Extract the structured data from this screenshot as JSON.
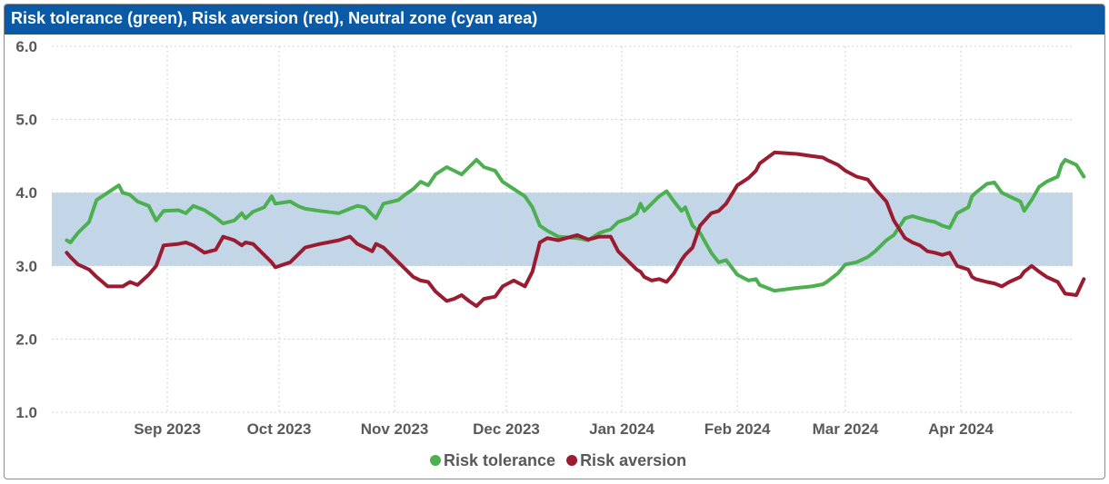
{
  "title": "Risk tolerance (green), Risk aversion (red), Neutral zone (cyan area)",
  "colors": {
    "title_bar": "#0b5aa5",
    "tolerance": "#4caf50",
    "aversion": "#9b1b30",
    "neutral_zone": "#c3d6e8",
    "grid": "#d0d0d0",
    "tick_text": "#595959"
  },
  "chart_data": {
    "type": "line",
    "title": "Risk tolerance (green), Risk aversion (red), Neutral zone (cyan area)",
    "ylim": [
      1.0,
      6.0
    ],
    "y_ticks": [
      "1.0",
      "2.0",
      "3.0",
      "4.0",
      "5.0",
      "6.0"
    ],
    "x_range": [
      "2023-08-01",
      "2024-05-01"
    ],
    "x_ticks": [
      {
        "date": "2023-09-01",
        "label": "Sep 2023"
      },
      {
        "date": "2023-10-01",
        "label": "Oct 2023"
      },
      {
        "date": "2023-11-01",
        "label": "Nov 2023"
      },
      {
        "date": "2023-12-01",
        "label": "Dec 2023"
      },
      {
        "date": "2024-01-01",
        "label": "Jan 2024"
      },
      {
        "date": "2024-02-01",
        "label": "Feb 2024"
      },
      {
        "date": "2024-03-01",
        "label": "Mar 2024"
      },
      {
        "date": "2024-04-01",
        "label": "Apr 2024"
      }
    ],
    "neutral_zone": [
      3.0,
      4.0
    ],
    "grid": true,
    "legend_position": "bottom-center",
    "series": [
      {
        "name": "Risk tolerance",
        "color": "#4caf50",
        "points": [
          [
            "2023-08-05",
            3.35
          ],
          [
            "2023-08-06",
            3.32
          ],
          [
            "2023-08-08",
            3.45
          ],
          [
            "2023-08-11",
            3.6
          ],
          [
            "2023-08-13",
            3.9
          ],
          [
            "2023-08-16",
            4.0
          ],
          [
            "2023-08-19",
            4.1
          ],
          [
            "2023-08-20",
            4.0
          ],
          [
            "2023-08-22",
            3.97
          ],
          [
            "2023-08-24",
            3.88
          ],
          [
            "2023-08-27",
            3.82
          ],
          [
            "2023-08-29",
            3.62
          ],
          [
            "2023-08-31",
            3.75
          ],
          [
            "2023-09-04",
            3.76
          ],
          [
            "2023-09-06",
            3.72
          ],
          [
            "2023-09-08",
            3.82
          ],
          [
            "2023-09-11",
            3.76
          ],
          [
            "2023-09-14",
            3.66
          ],
          [
            "2023-09-16",
            3.58
          ],
          [
            "2023-09-19",
            3.62
          ],
          [
            "2023-09-21",
            3.72
          ],
          [
            "2023-09-22",
            3.65
          ],
          [
            "2023-09-24",
            3.74
          ],
          [
            "2023-09-27",
            3.8
          ],
          [
            "2023-09-29",
            3.95
          ],
          [
            "2023-09-30",
            3.85
          ],
          [
            "2023-10-04",
            3.88
          ],
          [
            "2023-10-06",
            3.82
          ],
          [
            "2023-10-08",
            3.78
          ],
          [
            "2023-10-12",
            3.75
          ],
          [
            "2023-10-17",
            3.72
          ],
          [
            "2023-10-20",
            3.78
          ],
          [
            "2023-10-22",
            3.82
          ],
          [
            "2023-10-24",
            3.8
          ],
          [
            "2023-10-26",
            3.7
          ],
          [
            "2023-10-27",
            3.65
          ],
          [
            "2023-10-29",
            3.85
          ],
          [
            "2023-11-02",
            3.9
          ],
          [
            "2023-11-04",
            3.98
          ],
          [
            "2023-11-06",
            4.05
          ],
          [
            "2023-11-08",
            4.15
          ],
          [
            "2023-11-10",
            4.1
          ],
          [
            "2023-11-12",
            4.25
          ],
          [
            "2023-11-15",
            4.35
          ],
          [
            "2023-11-17",
            4.3
          ],
          [
            "2023-11-19",
            4.25
          ],
          [
            "2023-11-21",
            4.35
          ],
          [
            "2023-11-23",
            4.45
          ],
          [
            "2023-11-25",
            4.35
          ],
          [
            "2023-11-28",
            4.3
          ],
          [
            "2023-11-30",
            4.15
          ],
          [
            "2023-12-03",
            4.05
          ],
          [
            "2023-12-06",
            3.95
          ],
          [
            "2023-12-08",
            3.8
          ],
          [
            "2023-12-10",
            3.55
          ],
          [
            "2023-12-12",
            3.48
          ],
          [
            "2023-12-15",
            3.4
          ],
          [
            "2023-12-20",
            3.38
          ],
          [
            "2023-12-23",
            3.35
          ],
          [
            "2023-12-26",
            3.45
          ],
          [
            "2023-12-29",
            3.5
          ],
          [
            "2023-12-31",
            3.6
          ],
          [
            "2024-01-03",
            3.65
          ],
          [
            "2024-01-05",
            3.72
          ],
          [
            "2024-01-06",
            3.85
          ],
          [
            "2024-01-07",
            3.75
          ],
          [
            "2024-01-09",
            3.85
          ],
          [
            "2024-01-11",
            3.95
          ],
          [
            "2024-01-13",
            4.02
          ],
          [
            "2024-01-15",
            3.88
          ],
          [
            "2024-01-17",
            3.75
          ],
          [
            "2024-01-18",
            3.8
          ],
          [
            "2024-01-20",
            3.55
          ],
          [
            "2024-01-22",
            3.45
          ],
          [
            "2024-01-25",
            3.18
          ],
          [
            "2024-01-27",
            3.05
          ],
          [
            "2024-01-29",
            3.08
          ],
          [
            "2024-02-01",
            2.88
          ],
          [
            "2024-02-04",
            2.8
          ],
          [
            "2024-02-06",
            2.82
          ],
          [
            "2024-02-07",
            2.74
          ],
          [
            "2024-02-11",
            2.66
          ],
          [
            "2024-02-17",
            2.7
          ],
          [
            "2024-02-21",
            2.72
          ],
          [
            "2024-02-24",
            2.75
          ],
          [
            "2024-02-25",
            2.78
          ],
          [
            "2024-02-28",
            2.9
          ],
          [
            "2024-03-01",
            3.02
          ],
          [
            "2024-03-04",
            3.05
          ],
          [
            "2024-03-07",
            3.12
          ],
          [
            "2024-03-09",
            3.2
          ],
          [
            "2024-03-12",
            3.35
          ],
          [
            "2024-03-14",
            3.42
          ],
          [
            "2024-03-17",
            3.65
          ],
          [
            "2024-03-19",
            3.68
          ],
          [
            "2024-03-21",
            3.65
          ],
          [
            "2024-03-23",
            3.62
          ],
          [
            "2024-03-25",
            3.6
          ],
          [
            "2024-03-27",
            3.55
          ],
          [
            "2024-03-29",
            3.52
          ],
          [
            "2024-03-31",
            3.72
          ],
          [
            "2024-04-03",
            3.8
          ],
          [
            "2024-04-04",
            3.95
          ],
          [
            "2024-04-05",
            4.0
          ],
          [
            "2024-04-08",
            4.12
          ],
          [
            "2024-04-10",
            4.14
          ],
          [
            "2024-04-12",
            4.0
          ],
          [
            "2024-04-14",
            3.95
          ],
          [
            "2024-04-17",
            3.88
          ],
          [
            "2024-04-18",
            3.75
          ],
          [
            "2024-04-20",
            3.9
          ],
          [
            "2024-04-22",
            4.08
          ],
          [
            "2024-04-24",
            4.15
          ],
          [
            "2024-04-27",
            4.22
          ],
          [
            "2024-04-28",
            4.38
          ],
          [
            "2024-04-29",
            4.45
          ],
          [
            "2024-05-02",
            4.38
          ],
          [
            "2024-05-04",
            4.22
          ]
        ]
      },
      {
        "name": "Risk aversion",
        "color": "#9b1b30",
        "points": [
          [
            "2023-08-05",
            3.18
          ],
          [
            "2023-08-06",
            3.12
          ],
          [
            "2023-08-08",
            3.02
          ],
          [
            "2023-08-11",
            2.95
          ],
          [
            "2023-08-13",
            2.85
          ],
          [
            "2023-08-16",
            2.72
          ],
          [
            "2023-08-19",
            2.72
          ],
          [
            "2023-08-20",
            2.72
          ],
          [
            "2023-08-22",
            2.78
          ],
          [
            "2023-08-24",
            2.74
          ],
          [
            "2023-08-27",
            2.88
          ],
          [
            "2023-08-29",
            3.0
          ],
          [
            "2023-08-31",
            3.28
          ],
          [
            "2023-09-04",
            3.3
          ],
          [
            "2023-09-06",
            3.32
          ],
          [
            "2023-09-08",
            3.28
          ],
          [
            "2023-09-11",
            3.18
          ],
          [
            "2023-09-14",
            3.22
          ],
          [
            "2023-09-16",
            3.4
          ],
          [
            "2023-09-19",
            3.35
          ],
          [
            "2023-09-21",
            3.28
          ],
          [
            "2023-09-22",
            3.32
          ],
          [
            "2023-09-24",
            3.3
          ],
          [
            "2023-09-27",
            3.15
          ],
          [
            "2023-09-29",
            3.05
          ],
          [
            "2023-09-30",
            2.98
          ],
          [
            "2023-10-04",
            3.05
          ],
          [
            "2023-10-06",
            3.15
          ],
          [
            "2023-10-08",
            3.25
          ],
          [
            "2023-10-12",
            3.3
          ],
          [
            "2023-10-17",
            3.35
          ],
          [
            "2023-10-20",
            3.4
          ],
          [
            "2023-10-22",
            3.3
          ],
          [
            "2023-10-24",
            3.25
          ],
          [
            "2023-10-26",
            3.2
          ],
          [
            "2023-10-27",
            3.3
          ],
          [
            "2023-10-29",
            3.25
          ],
          [
            "2023-11-02",
            3.05
          ],
          [
            "2023-11-04",
            2.95
          ],
          [
            "2023-11-06",
            2.85
          ],
          [
            "2023-11-08",
            2.8
          ],
          [
            "2023-11-10",
            2.78
          ],
          [
            "2023-11-12",
            2.65
          ],
          [
            "2023-11-15",
            2.52
          ],
          [
            "2023-11-17",
            2.55
          ],
          [
            "2023-11-19",
            2.6
          ],
          [
            "2023-11-21",
            2.52
          ],
          [
            "2023-11-23",
            2.45
          ],
          [
            "2023-11-25",
            2.55
          ],
          [
            "2023-11-28",
            2.58
          ],
          [
            "2023-11-30",
            2.72
          ],
          [
            "2023-12-03",
            2.8
          ],
          [
            "2023-12-06",
            2.72
          ],
          [
            "2023-12-08",
            2.92
          ],
          [
            "2023-12-10",
            3.32
          ],
          [
            "2023-12-12",
            3.38
          ],
          [
            "2023-12-15",
            3.35
          ],
          [
            "2023-12-20",
            3.42
          ],
          [
            "2023-12-23",
            3.36
          ],
          [
            "2023-12-26",
            3.4
          ],
          [
            "2023-12-29",
            3.4
          ],
          [
            "2023-12-31",
            3.2
          ],
          [
            "2024-01-03",
            3.05
          ],
          [
            "2024-01-05",
            2.95
          ],
          [
            "2024-01-06",
            2.92
          ],
          [
            "2024-01-07",
            2.85
          ],
          [
            "2024-01-09",
            2.8
          ],
          [
            "2024-01-11",
            2.82
          ],
          [
            "2024-01-13",
            2.78
          ],
          [
            "2024-01-15",
            2.9
          ],
          [
            "2024-01-17",
            3.08
          ],
          [
            "2024-01-18",
            3.15
          ],
          [
            "2024-01-20",
            3.25
          ],
          [
            "2024-01-22",
            3.55
          ],
          [
            "2024-01-25",
            3.72
          ],
          [
            "2024-01-27",
            3.75
          ],
          [
            "2024-01-29",
            3.85
          ],
          [
            "2024-02-01",
            4.1
          ],
          [
            "2024-02-04",
            4.2
          ],
          [
            "2024-02-06",
            4.3
          ],
          [
            "2024-02-07",
            4.4
          ],
          [
            "2024-02-11",
            4.55
          ],
          [
            "2024-02-17",
            4.53
          ],
          [
            "2024-02-21",
            4.5
          ],
          [
            "2024-02-24",
            4.48
          ],
          [
            "2024-02-25",
            4.45
          ],
          [
            "2024-02-28",
            4.38
          ],
          [
            "2024-03-01",
            4.3
          ],
          [
            "2024-03-04",
            4.22
          ],
          [
            "2024-03-07",
            4.18
          ],
          [
            "2024-03-09",
            4.05
          ],
          [
            "2024-03-12",
            3.88
          ],
          [
            "2024-03-14",
            3.62
          ],
          [
            "2024-03-17",
            3.38
          ],
          [
            "2024-03-19",
            3.32
          ],
          [
            "2024-03-21",
            3.28
          ],
          [
            "2024-03-23",
            3.2
          ],
          [
            "2024-03-25",
            3.18
          ],
          [
            "2024-03-27",
            3.15
          ],
          [
            "2024-03-29",
            3.18
          ],
          [
            "2024-03-31",
            3.0
          ],
          [
            "2024-04-03",
            2.95
          ],
          [
            "2024-04-04",
            2.85
          ],
          [
            "2024-04-05",
            2.82
          ],
          [
            "2024-04-08",
            2.78
          ],
          [
            "2024-04-10",
            2.76
          ],
          [
            "2024-04-12",
            2.72
          ],
          [
            "2024-04-14",
            2.78
          ],
          [
            "2024-04-17",
            2.85
          ],
          [
            "2024-04-18",
            2.92
          ],
          [
            "2024-04-20",
            3.0
          ],
          [
            "2024-04-22",
            2.92
          ],
          [
            "2024-04-24",
            2.85
          ],
          [
            "2024-04-27",
            2.78
          ],
          [
            "2024-04-28",
            2.7
          ],
          [
            "2024-04-29",
            2.62
          ],
          [
            "2024-05-02",
            2.6
          ],
          [
            "2024-05-04",
            2.82
          ]
        ]
      }
    ]
  }
}
